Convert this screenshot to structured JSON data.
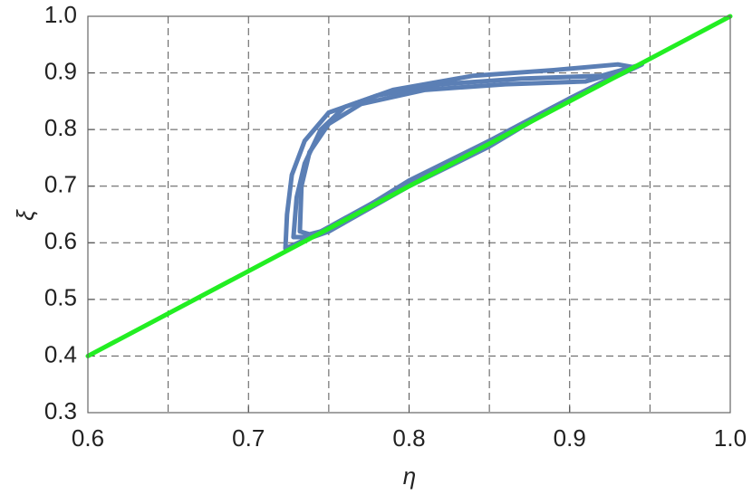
{
  "chart_data": {
    "type": "line",
    "x_label": "η",
    "y_label": "ξ",
    "xlim": [
      0.6,
      1.0
    ],
    "ylim": [
      0.3,
      1.0
    ],
    "xticks": [
      0.6,
      0.7,
      0.8,
      0.9,
      {
        "value": 1,
        "label": "1.0"
      }
    ],
    "yticks": [
      0.3,
      0.4,
      0.5,
      0.6,
      0.7,
      0.8,
      0.9,
      {
        "value": 1,
        "label": "1.0"
      }
    ],
    "xgrid": [
      0.65,
      0.7,
      0.75,
      0.8,
      0.85,
      0.9,
      0.95
    ],
    "grid": true,
    "series": [
      {
        "color": "#5b7fb5",
        "x": [
          0.723,
          0.724,
          0.727,
          0.735,
          0.75,
          0.78,
          0.82,
          0.87,
          0.92,
          0.945,
          0.9,
          0.85,
          0.8,
          0.75,
          0.735,
          0.723
        ],
        "values": [
          0.59,
          0.65,
          0.72,
          0.78,
          0.83,
          0.86,
          0.88,
          0.89,
          0.895,
          0.915,
          0.855,
          0.77,
          0.7,
          0.62,
          0.605,
          0.59
        ]
      },
      {
        "color": "#5b7fb5",
        "x": [
          0.728,
          0.73,
          0.735,
          0.745,
          0.76,
          0.79,
          0.84,
          0.89,
          0.93,
          0.94,
          0.89,
          0.84,
          0.79,
          0.745,
          0.735,
          0.728
        ],
        "values": [
          0.61,
          0.68,
          0.74,
          0.8,
          0.84,
          0.87,
          0.895,
          0.905,
          0.915,
          0.91,
          0.84,
          0.765,
          0.69,
          0.62,
          0.61,
          0.61
        ]
      },
      {
        "color": "#5b7fb5",
        "x": [
          0.732,
          0.733,
          0.738,
          0.75,
          0.77,
          0.81,
          0.86,
          0.91,
          0.935,
          0.9,
          0.85,
          0.8,
          0.76,
          0.745,
          0.738,
          0.732
        ],
        "values": [
          0.62,
          0.7,
          0.76,
          0.81,
          0.845,
          0.87,
          0.88,
          0.885,
          0.905,
          0.855,
          0.78,
          0.71,
          0.64,
          0.62,
          0.615,
          0.62
        ]
      },
      {
        "color": "#22ee22",
        "x": [
          0.6,
          1.0
        ],
        "values": [
          0.4,
          1.0
        ]
      }
    ]
  }
}
